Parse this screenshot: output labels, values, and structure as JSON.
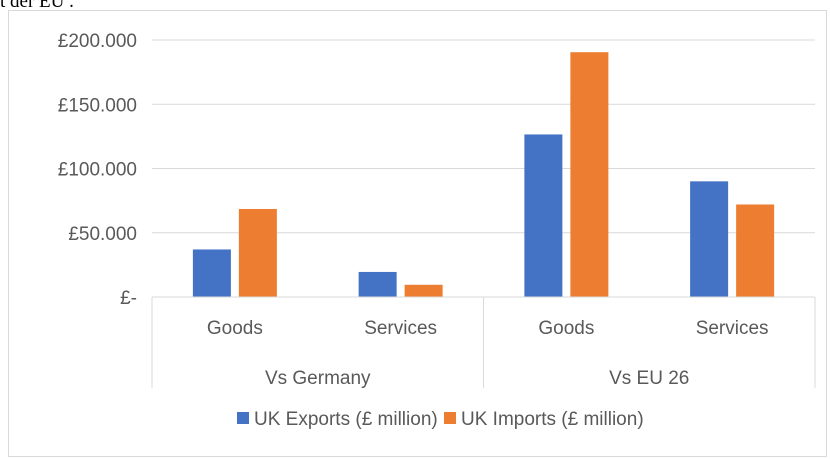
{
  "header_fragment": "t der EU .",
  "chart_data": {
    "type": "bar",
    "y_ticks": [
      "£-",
      "£50.000",
      "£100.000",
      "£150.000",
      "£200.000"
    ],
    "ylim": [
      0,
      200000
    ],
    "groups": [
      {
        "label": "Vs Germany",
        "categories": [
          "Goods",
          "Services"
        ]
      },
      {
        "label": "Vs EU 26",
        "categories": [
          "Goods",
          "Services"
        ]
      }
    ],
    "categories": [
      "Goods",
      "Services",
      "Goods",
      "Services"
    ],
    "series": [
      {
        "name": "UK Exports (£ million)",
        "color": "#4472c4",
        "values": [
          37000,
          19500,
          126500,
          90000
        ]
      },
      {
        "name": "UK Imports (£ million)",
        "color": "#ed7d31",
        "values": [
          68500,
          9500,
          190500,
          72000
        ]
      }
    ],
    "grid": true,
    "legend_position": "bottom"
  }
}
